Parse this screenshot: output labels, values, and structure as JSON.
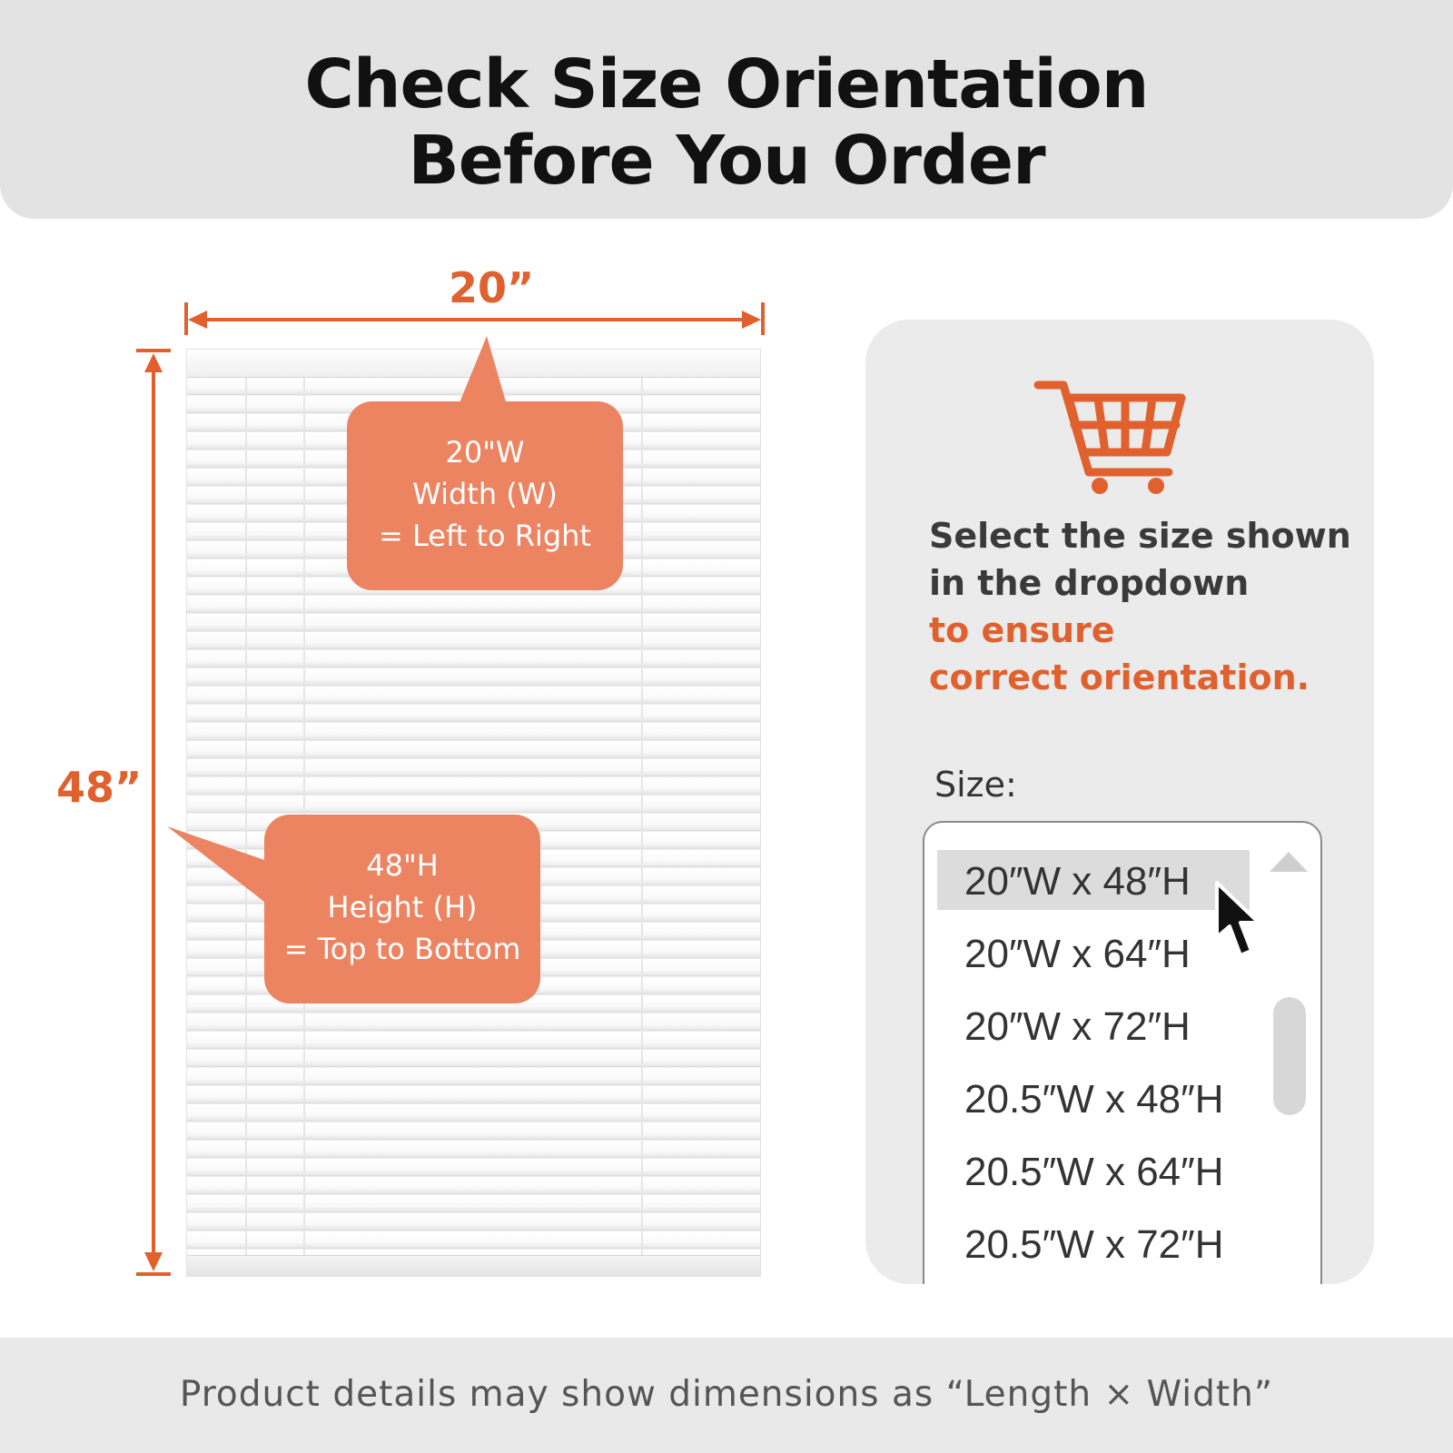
{
  "header": {
    "title_line1": "Check Size Orientation",
    "title_line2": "Before You Order"
  },
  "blind_diagram": {
    "width_label": "20”",
    "height_label": "48”",
    "width_callout": {
      "line1": "20\"W",
      "line2": "Width (W)",
      "line3": "= Left to Right"
    },
    "height_callout": {
      "line1": "48\"H",
      "line2": "Height (H)",
      "line3": "= Top to Bottom"
    },
    "accent_color": "#e0602e",
    "callout_color": "#ec8462"
  },
  "panel": {
    "icon": "shopping-cart-icon",
    "instruction_line1": "Select the size shown",
    "instruction_line2": "in the dropdown",
    "instruction_line3": "to ensure",
    "instruction_line4": "correct orientation.",
    "size_label": "Size:",
    "selected_value": "20″W x 48″H",
    "options": [
      "20″W x 48″H",
      "20″W x 64″H",
      "20″W x 72″H",
      "20.5″W x 48″H",
      "20.5″W x 64″H",
      "20.5″W x 72″H"
    ]
  },
  "footer": {
    "note": "Product details may show dimensions as “Length × Width”"
  }
}
